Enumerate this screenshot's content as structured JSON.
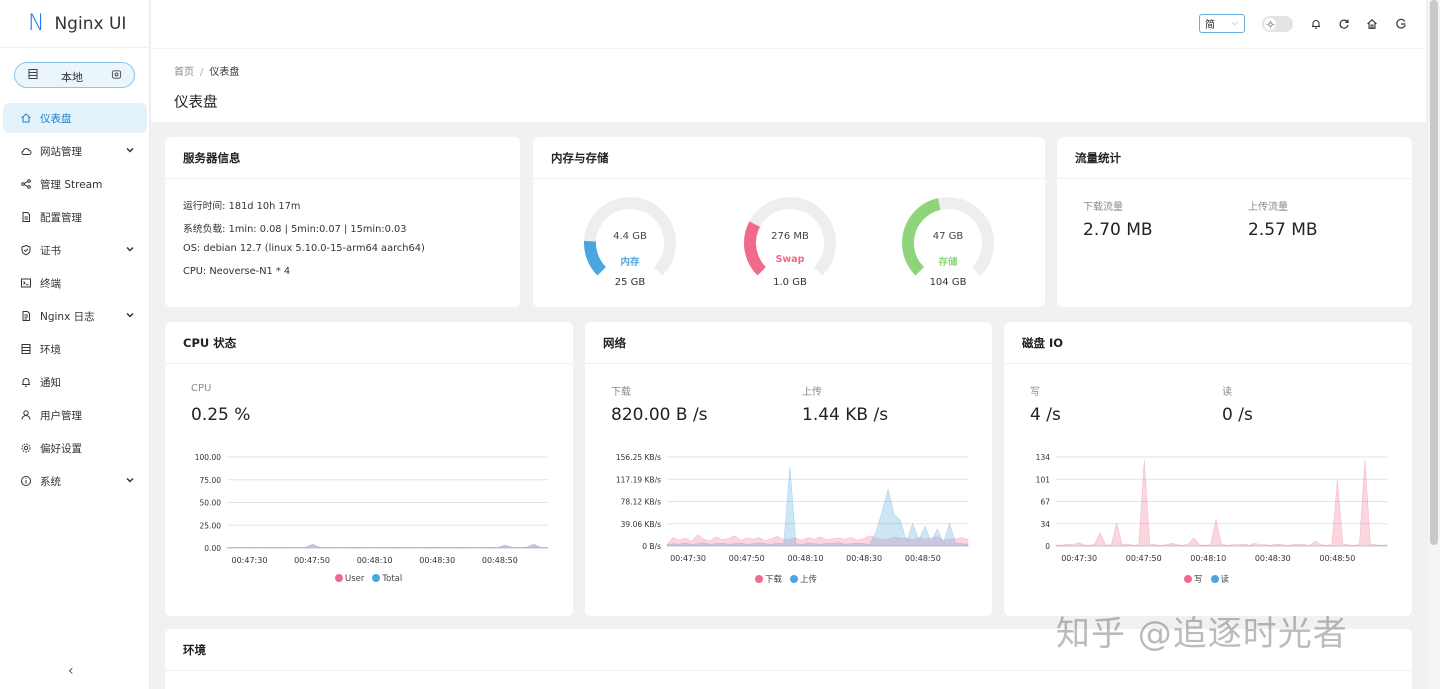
{
  "app": {
    "name": "Nginx UI"
  },
  "env_switch": {
    "label": "本地"
  },
  "sidebar": {
    "items": [
      {
        "label": "仪表盘",
        "icon": "home-icon",
        "active": true,
        "expand": false
      },
      {
        "label": "网站管理",
        "icon": "cloud-icon",
        "active": false,
        "expand": true
      },
      {
        "label": "管理 Stream",
        "icon": "share-icon",
        "active": false,
        "expand": false
      },
      {
        "label": "配置管理",
        "icon": "file-icon",
        "active": false,
        "expand": false
      },
      {
        "label": "证书",
        "icon": "shield-check-icon",
        "active": false,
        "expand": true
      },
      {
        "label": "终端",
        "icon": "terminal-icon",
        "active": false,
        "expand": false
      },
      {
        "label": "Nginx 日志",
        "icon": "log-file-icon",
        "active": false,
        "expand": true
      },
      {
        "label": "环境",
        "icon": "database-icon",
        "active": false,
        "expand": false
      },
      {
        "label": "通知",
        "icon": "bell-icon",
        "active": false,
        "expand": false
      },
      {
        "label": "用户管理",
        "icon": "user-icon",
        "active": false,
        "expand": false
      },
      {
        "label": "偏好设置",
        "icon": "gear-icon",
        "active": false,
        "expand": false
      },
      {
        "label": "系统",
        "icon": "info-icon",
        "active": false,
        "expand": true
      }
    ]
  },
  "header": {
    "language": "简"
  },
  "breadcrumb": {
    "home": "首页",
    "separator": "/",
    "current": "仪表盘"
  },
  "page": {
    "title": "仪表盘"
  },
  "server_info": {
    "title": "服务器信息",
    "uptime": "运行时间: 181d 10h 17m",
    "load": "系统负载: 1min: 0.08 | 5min:0.07 | 15min:0.03",
    "os": "OS: debian 12.7 (linux 5.10.0-15-arm64 aarch64)",
    "cpu": "CPU: Neoverse-N1 * 4"
  },
  "memory": {
    "title": "内存与存储",
    "gauges": [
      {
        "value": "4.4 GB",
        "name": "内存",
        "total": "25 GB",
        "fraction": 0.176,
        "color": "#4aa5e0"
      },
      {
        "value": "276 MB",
        "name": "Swap",
        "total": "1.0 GB",
        "fraction": 0.27,
        "color": "#f06b8b"
      },
      {
        "value": "47 GB",
        "name": "存储",
        "total": "104 GB",
        "fraction": 0.452,
        "color": "#8fd47a"
      }
    ]
  },
  "traffic": {
    "title": "流量统计",
    "download_label": "下载流量",
    "download_value": "2.70 MB",
    "upload_label": "上传流量",
    "upload_value": "2.57 MB"
  },
  "cpu_card": {
    "title": "CPU 状态",
    "stat_label": "CPU",
    "stat_value": "0.25 %"
  },
  "network_card": {
    "title": "网络",
    "down_label": "下载",
    "down_value": "820.00 B /s",
    "up_label": "上传",
    "up_value": "1.44 KB /s"
  },
  "disk_card": {
    "title": "磁盘 IO",
    "write_label": "写",
    "write_value": "4 /s",
    "read_label": "读",
    "read_value": "0 /s"
  },
  "env_card": {
    "title": "环境"
  },
  "watermark": "知乎 @追逐时光者",
  "chart_data": [
    {
      "type": "area",
      "title": "CPU 状态",
      "yticks": [
        "100.00",
        "75.00",
        "50.00",
        "25.00",
        "0.00"
      ],
      "ylim": [
        0,
        100
      ],
      "xticks": [
        "00:47:30",
        "00:47:50",
        "00:48:10",
        "00:48:30",
        "00:48:50"
      ],
      "series": [
        {
          "name": "User",
          "color": "#f06b8b",
          "values": [
            0.3,
            0.4,
            0.3,
            0.5,
            0.4,
            0.3,
            0.6,
            0.4,
            0.5,
            0.3,
            0.4,
            0.5,
            3.5,
            0.6,
            0.4,
            0.5,
            0.3,
            0.4,
            0.6,
            0.5,
            0.4,
            0.3,
            0.5,
            0.4,
            0.6,
            0.5,
            0.4,
            0.3,
            0.5,
            0.7,
            0.5,
            0.4,
            0.6,
            0.5,
            0.4,
            0.3,
            0.5,
            0.6,
            0.4,
            2.5,
            0.5,
            0.4,
            0.6,
            3.5,
            0.4,
            0.5
          ]
        },
        {
          "name": "Total",
          "color": "#4aa5e0",
          "values": [
            0.5,
            0.6,
            0.5,
            0.7,
            0.6,
            0.5,
            0.8,
            0.6,
            0.7,
            0.5,
            0.6,
            0.7,
            4.5,
            0.8,
            0.6,
            0.7,
            0.5,
            0.6,
            0.8,
            0.7,
            0.6,
            0.5,
            0.7,
            0.6,
            0.8,
            0.7,
            0.6,
            0.5,
            0.7,
            0.9,
            0.7,
            0.6,
            0.8,
            0.7,
            0.6,
            0.5,
            0.7,
            0.8,
            0.6,
            3.5,
            0.7,
            0.6,
            0.8,
            4.5,
            0.6,
            0.7
          ]
        }
      ]
    },
    {
      "type": "area",
      "title": "网络",
      "yticks": [
        "156.25 KB/s",
        "117.19 KB/s",
        "78.12 KB/s",
        "39.06 KB/s",
        "0 B/s"
      ],
      "ylim": [
        0,
        156.25
      ],
      "xticks": [
        "00:47:30",
        "00:47:50",
        "00:48:10",
        "00:48:30",
        "00:48:50"
      ],
      "series": [
        {
          "name": "下载",
          "color": "#f06b8b",
          "values": [
            3,
            15,
            10,
            14,
            8,
            20,
            12,
            9,
            16,
            11,
            13,
            18,
            10,
            14,
            12,
            15,
            9,
            13,
            17,
            11,
            12,
            14,
            10,
            15,
            12,
            16,
            11,
            13,
            14,
            12,
            15,
            10,
            13,
            18,
            14,
            11,
            12,
            16,
            13,
            14,
            11,
            15,
            12,
            14,
            16,
            10,
            12,
            13,
            15,
            11
          ]
        },
        {
          "name": "上传",
          "color": "#4aa5e0",
          "values": [
            2,
            4,
            3,
            5,
            3,
            4,
            6,
            3,
            4,
            5,
            3,
            4,
            5,
            3,
            4,
            6,
            4,
            3,
            5,
            4,
            140,
            4,
            3,
            5,
            4,
            3,
            5,
            4,
            6,
            3,
            4,
            5,
            4,
            3,
            25,
            60,
            100,
            55,
            45,
            8,
            40,
            10,
            35,
            7,
            30,
            6,
            40,
            5,
            4,
            3
          ]
        }
      ]
    },
    {
      "type": "area",
      "title": "磁盘 IO",
      "yticks": [
        "134",
        "101",
        "67",
        "34",
        "0"
      ],
      "ylim": [
        0,
        134
      ],
      "xticks": [
        "00:47:30",
        "00:47:50",
        "00:48:10",
        "00:48:30",
        "00:48:50"
      ],
      "series": [
        {
          "name": "写",
          "color": "#f06b8b",
          "values": [
            2,
            1,
            3,
            2,
            5,
            2,
            1,
            3,
            20,
            2,
            1,
            35,
            2,
            3,
            1,
            2,
            130,
            3,
            2,
            1,
            2,
            4,
            2,
            1,
            3,
            12,
            2,
            1,
            2,
            40,
            3,
            1,
            2,
            2,
            3,
            1,
            4,
            2,
            2,
            1,
            3,
            2,
            1,
            2,
            3,
            2,
            1,
            8,
            2,
            1,
            2,
            100,
            3,
            2,
            1,
            2,
            130,
            3,
            2,
            1,
            2
          ]
        },
        {
          "name": "读",
          "color": "#4aa5e0",
          "values": [
            0,
            0,
            0,
            0,
            0,
            0,
            0,
            0,
            0,
            0,
            0,
            0,
            0,
            0,
            0,
            0,
            0,
            0,
            0,
            0,
            0,
            0,
            0,
            0,
            0,
            0,
            0,
            0,
            0,
            0,
            0,
            0,
            0,
            0,
            0,
            0,
            0,
            0,
            0,
            0,
            0,
            0,
            0,
            0,
            0,
            0,
            0,
            0,
            0,
            0,
            0,
            0,
            0,
            0,
            0,
            0,
            0,
            0,
            0,
            0,
            0
          ]
        }
      ]
    }
  ]
}
